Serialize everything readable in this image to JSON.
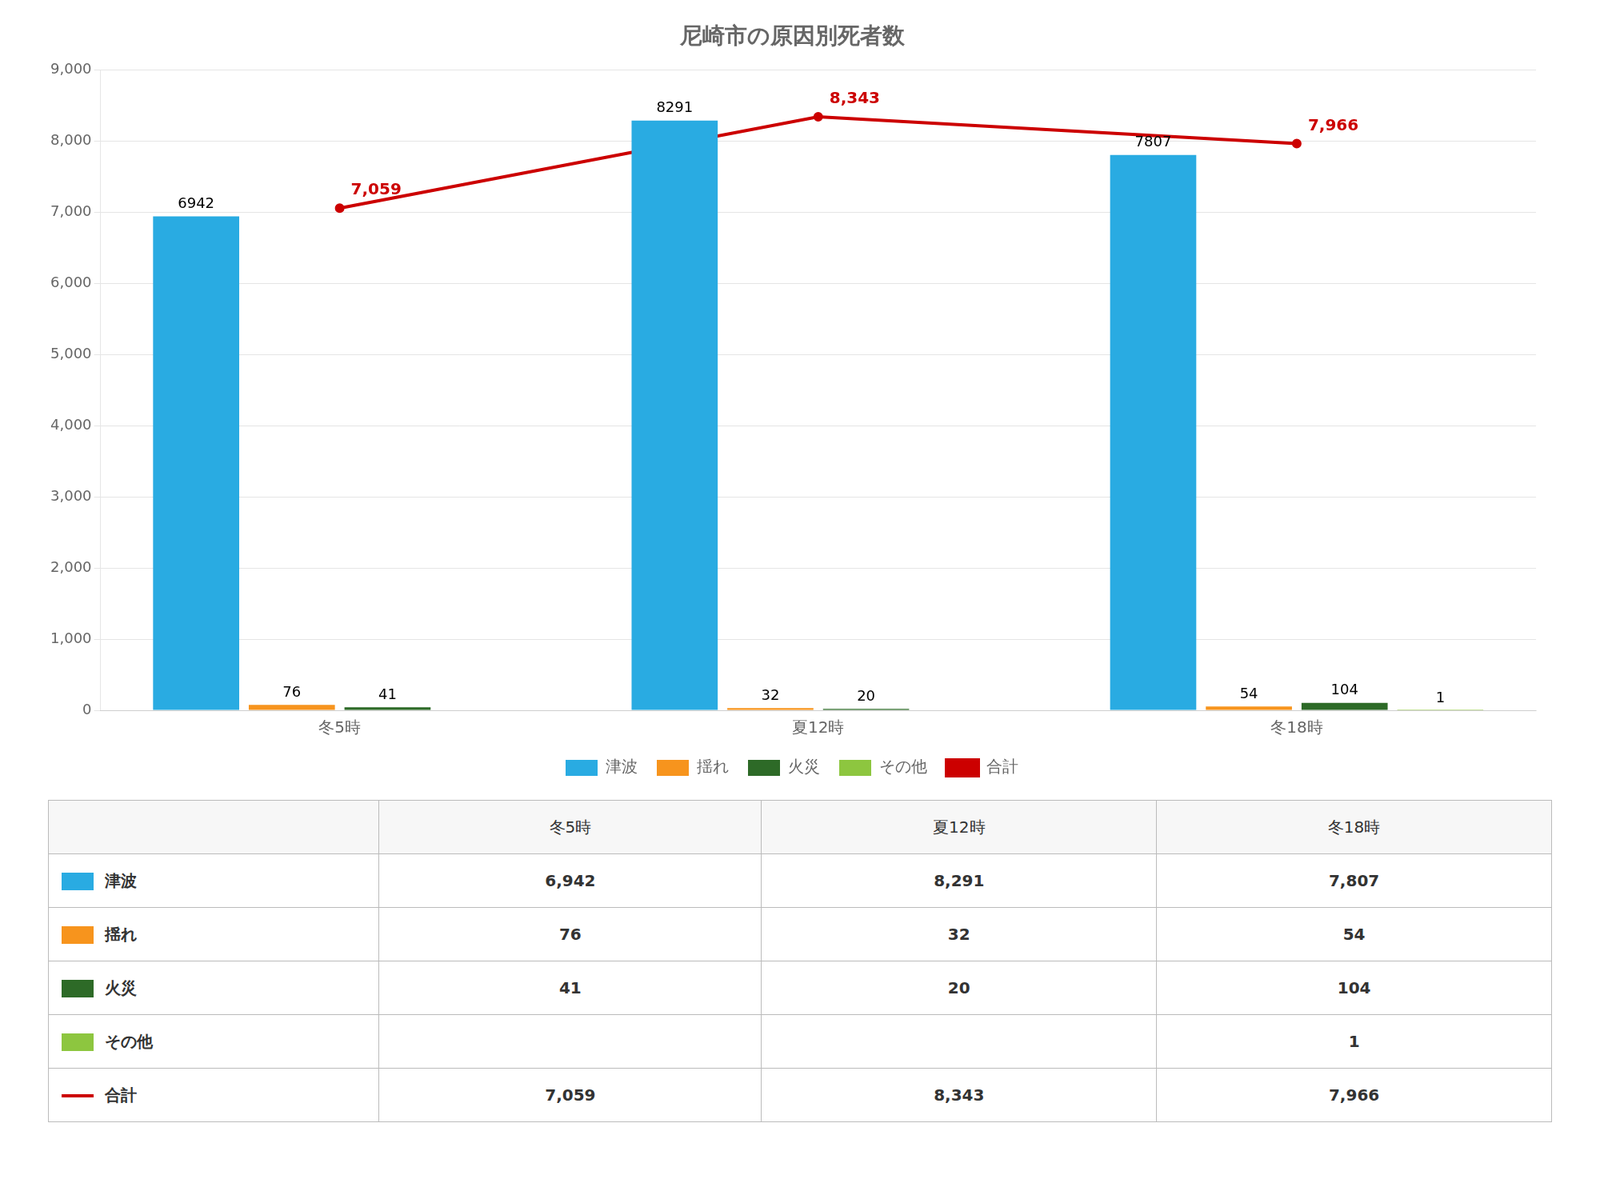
{
  "chart_data": {
    "type": "bar",
    "title": "尼崎市の原因別死者数",
    "categories": [
      "冬5時",
      "夏12時",
      "冬18時"
    ],
    "series": [
      {
        "name": "津波",
        "color": "#29ABE2",
        "values": [
          6942,
          8291,
          7807
        ]
      },
      {
        "name": "揺れ",
        "color": "#F7941D",
        "values": [
          76,
          32,
          54
        ]
      },
      {
        "name": "火災",
        "color": "#2D6A27",
        "values": [
          41,
          20,
          104
        ]
      },
      {
        "name": "その他",
        "color": "#8DC63F",
        "values": [
          0,
          0,
          1
        ],
        "value_labels": [
          null,
          null,
          "1"
        ]
      },
      {
        "name": "合計",
        "type": "line",
        "color": "#CC0000",
        "values": [
          7059,
          8343,
          7966
        ],
        "value_labels": [
          "7,059",
          "8,343",
          "7,966"
        ]
      }
    ],
    "ylim": [
      0,
      9000
    ],
    "yticks": [
      0,
      {
        "value": 1000,
        "label": "1,000"
      },
      {
        "value": 2000,
        "label": "2,000"
      },
      {
        "value": 3000,
        "label": "3,000"
      },
      {
        "value": 4000,
        "label": "4,000"
      },
      {
        "value": 5000,
        "label": "5,000"
      },
      {
        "value": 6000,
        "label": "6,000"
      },
      {
        "value": 7000,
        "label": "7,000"
      },
      {
        "value": 8000,
        "label": "8,000"
      },
      {
        "value": 9000,
        "label": "9,000"
      }
    ],
    "grid": true,
    "data_labels": true,
    "legend": "bottom",
    "table": {
      "columns": [
        "冬5時",
        "夏12時",
        "冬18時"
      ],
      "rows": [
        {
          "name": "津波",
          "cells": [
            "6,942",
            "8,291",
            "7,807"
          ]
        },
        {
          "name": "揺れ",
          "cells": [
            "76",
            "32",
            "54"
          ]
        },
        {
          "name": "火災",
          "cells": [
            "41",
            "20",
            "104"
          ]
        },
        {
          "name": "その他",
          "cells": [
            null,
            null,
            "1"
          ]
        },
        {
          "name": "合計",
          "cells": [
            "7,059",
            "8,343",
            "7,966"
          ]
        }
      ]
    }
  }
}
